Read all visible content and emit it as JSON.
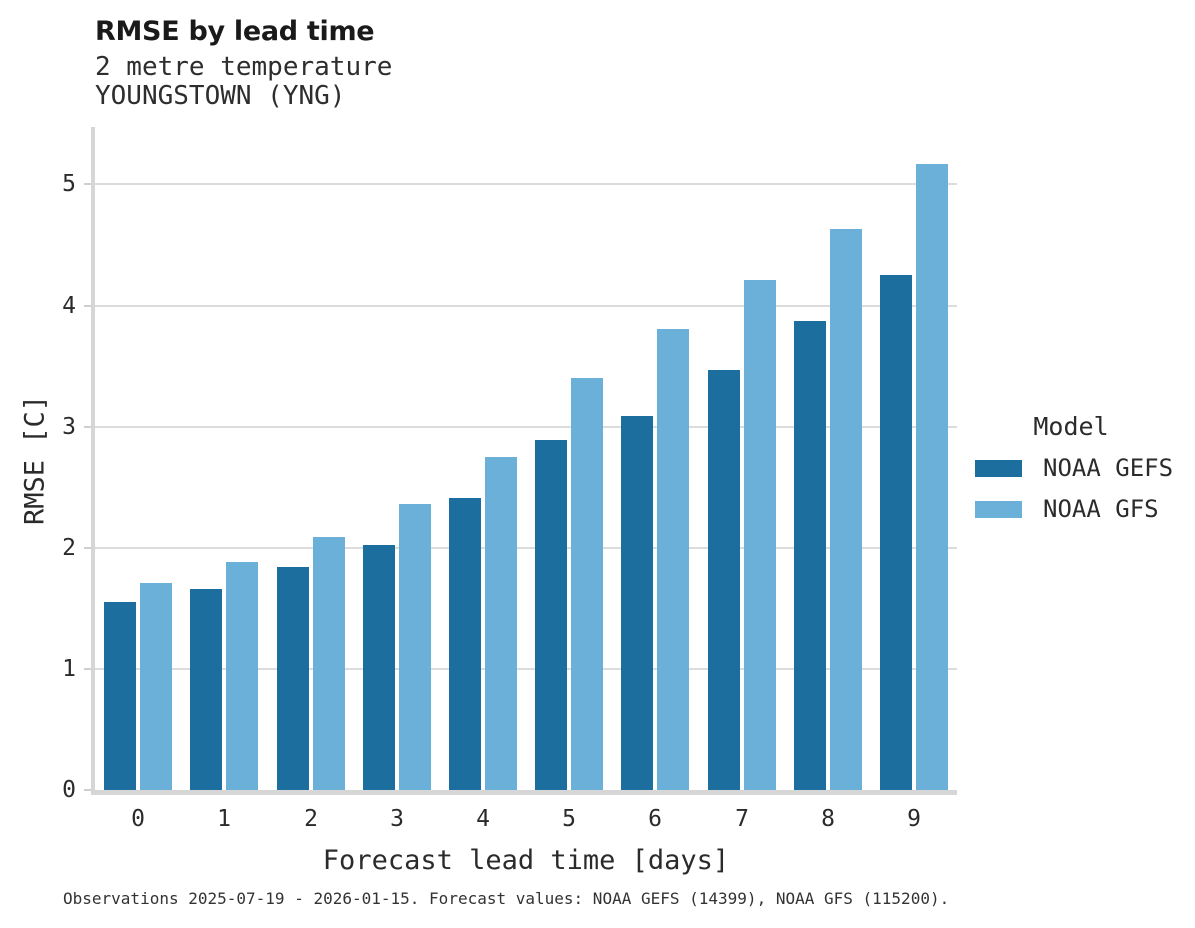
{
  "header": {
    "title": "RMSE by lead time",
    "subtitle": "2 metre temperature",
    "station": "YOUNGSTOWN (YNG)"
  },
  "axes": {
    "x_label": "Forecast lead time [days]",
    "y_label": "RMSE [C]",
    "y_ticks": [
      0,
      1,
      2,
      3,
      4,
      5
    ],
    "x_ticks": [
      "0",
      "1",
      "2",
      "3",
      "4",
      "5",
      "6",
      "7",
      "8",
      "9"
    ]
  },
  "legend": {
    "title": "Model"
  },
  "chart_data": {
    "type": "bar",
    "title": "RMSE by lead time",
    "subtitle": "2 metre temperature",
    "station": "YOUNGSTOWN (YNG)",
    "categories": [
      0,
      1,
      2,
      3,
      4,
      5,
      6,
      7,
      8,
      9
    ],
    "series": [
      {
        "name": "NOAA GEFS",
        "color": "#1b6e9e",
        "values": [
          1.55,
          1.66,
          1.84,
          2.02,
          2.41,
          2.89,
          3.09,
          3.47,
          3.87,
          4.25
        ]
      },
      {
        "name": "NOAA GFS",
        "color": "#6bb0d8",
        "values": [
          1.71,
          1.88,
          2.09,
          2.36,
          2.75,
          3.4,
          3.81,
          4.21,
          4.63,
          5.17
        ]
      }
    ],
    "xlabel": "Forecast lead time [days]",
    "ylabel": "RMSE [C]",
    "ylim": [
      0,
      5.45
    ],
    "grid": true,
    "grid_axis": "y",
    "legend_position": "right"
  },
  "footer": {
    "caption": "Observations 2025-07-19 - 2026-01-15. Forecast values: NOAA GEFS (14399), NOAA GFS (115200)."
  }
}
